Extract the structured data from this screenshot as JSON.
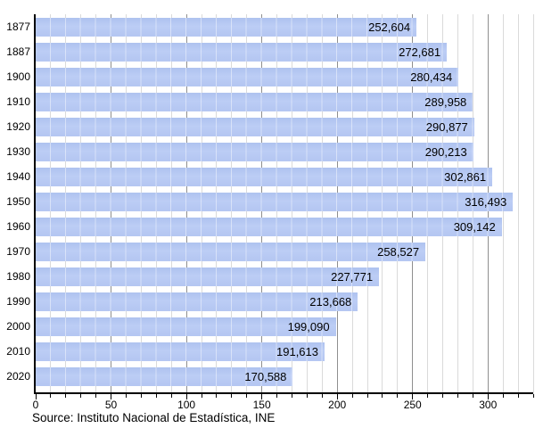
{
  "chart_data": {
    "type": "bar",
    "orientation": "horizontal",
    "categories": [
      "1877",
      "1887",
      "1900",
      "1910",
      "1920",
      "1930",
      "1940",
      "1950",
      "1960",
      "1970",
      "1980",
      "1990",
      "2000",
      "2010",
      "2020"
    ],
    "values": [
      252604,
      272681,
      280434,
      289958,
      290877,
      290213,
      302861,
      316493,
      309142,
      258527,
      227771,
      213668,
      199090,
      191613,
      170588
    ],
    "value_labels": [
      "252,604",
      "272,681",
      "280,434",
      "289,958",
      "290,877",
      "290,213",
      "302,861",
      "316,493",
      "309,142",
      "258,527",
      "227,771",
      "213,668",
      "199,090",
      "191,613",
      "170,588"
    ],
    "x_axis": {
      "min": 0,
      "max": 330,
      "major_increment": 50,
      "minor_increment": 10,
      "tick_labels": [
        "0",
        "50",
        "100",
        "150",
        "200",
        "250",
        "300"
      ],
      "value_divisor_for_axis": 1000
    },
    "grid": "vertical, minor every 10 (light grey), major every 50 (dark grey)",
    "legend": "none",
    "source": "Source: Instituto Nacional de Estadística, INE"
  },
  "colors": {
    "bar_fill": "#b5c7f2",
    "bar_fill_top": "#aec2ef",
    "bar_fill_bottom": "#bccdf5",
    "grid_minor": "#dadada",
    "grid_major": "#8f8f8f",
    "axis": "#000000",
    "text": "#000000",
    "background": "#ffffff"
  }
}
